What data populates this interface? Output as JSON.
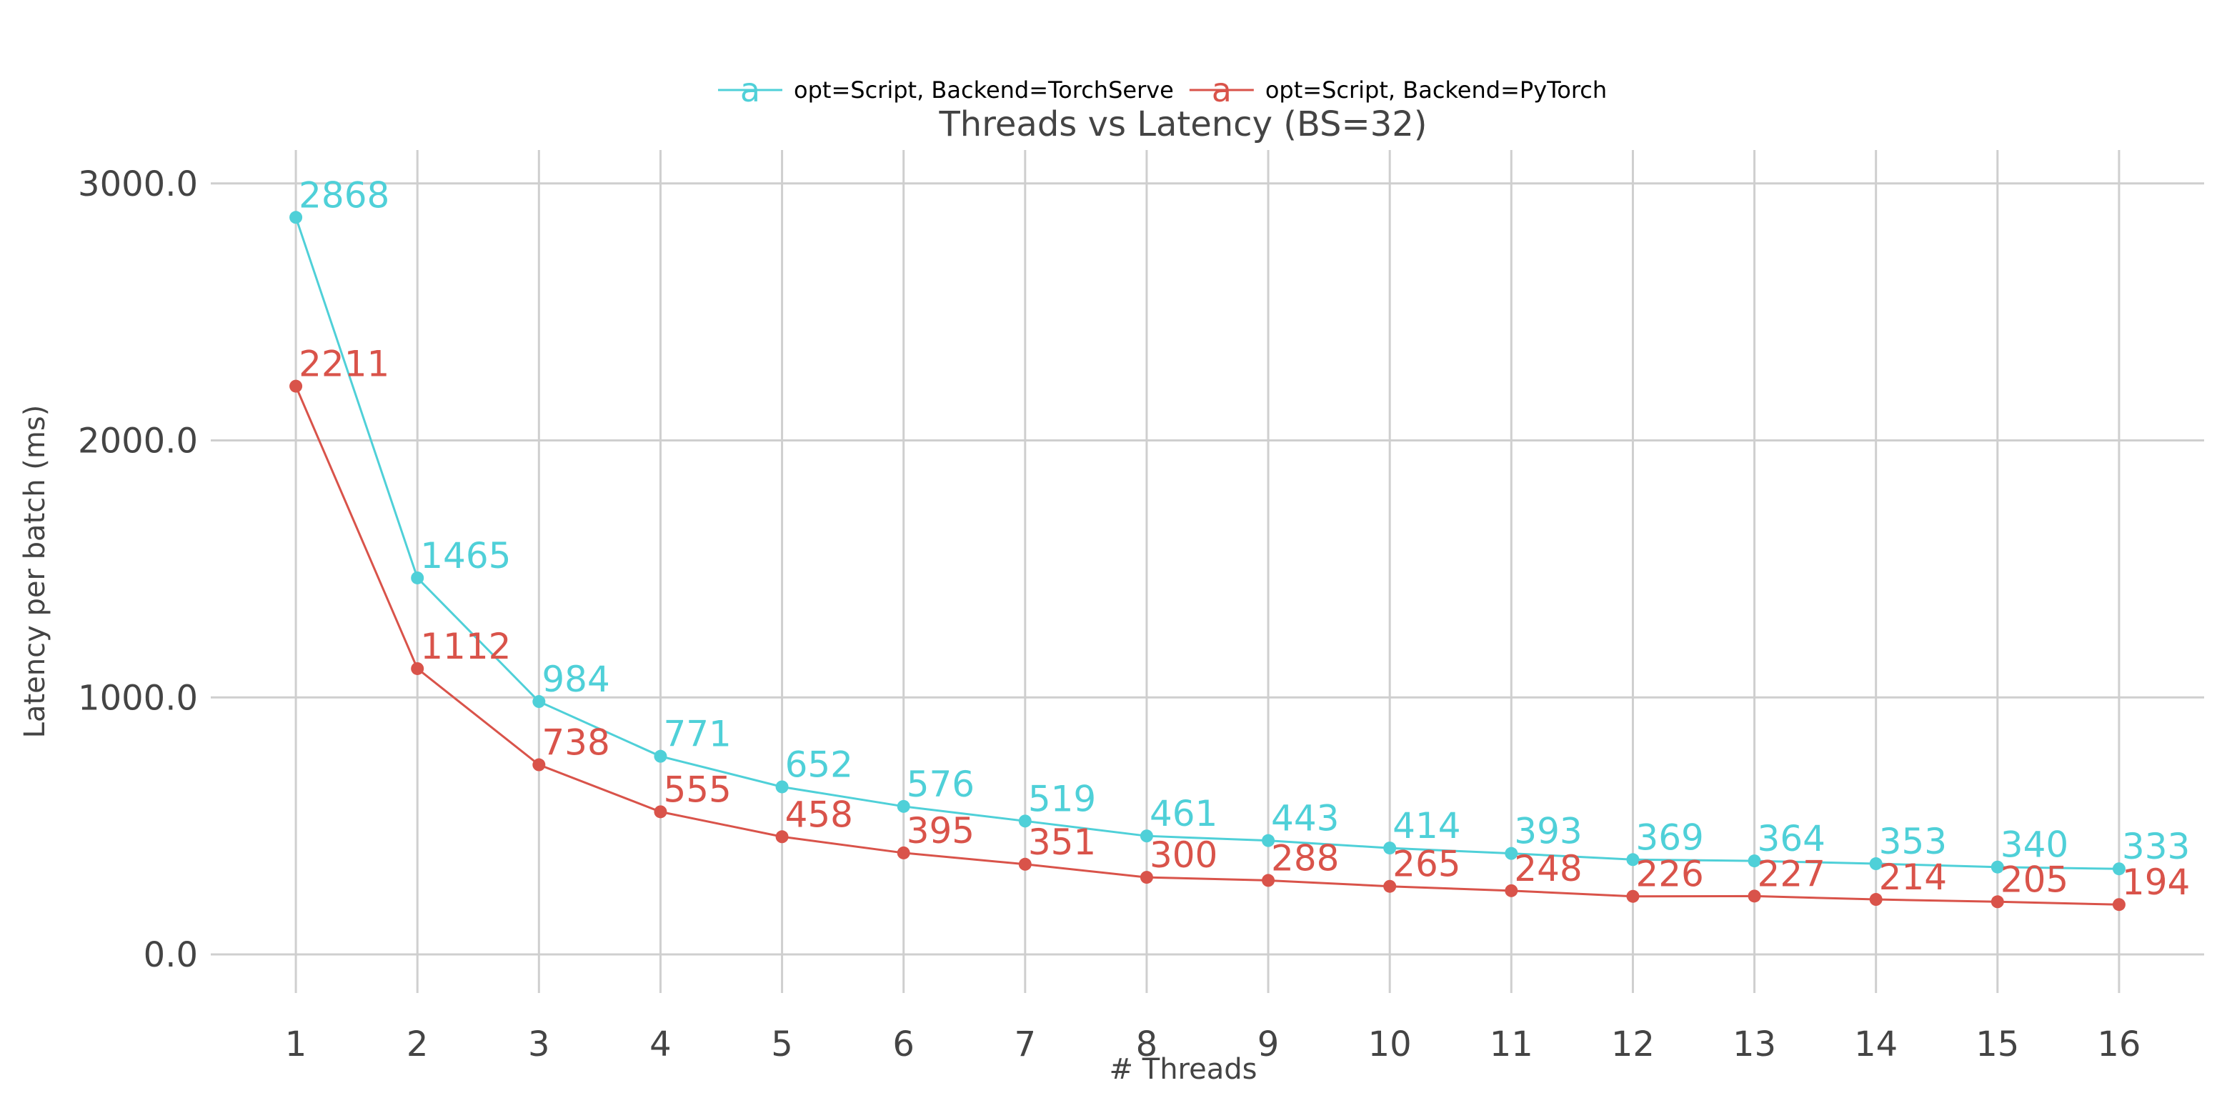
{
  "chart_data": {
    "type": "line",
    "title": "Threads vs Latency (BS=32)",
    "xlabel": "# Threads",
    "ylabel": "Latency per batch (ms)",
    "x": [
      1,
      2,
      3,
      4,
      5,
      6,
      7,
      8,
      9,
      10,
      11,
      12,
      13,
      14,
      15,
      16
    ],
    "xlim": [
      0.3,
      16.7
    ],
    "ylim": [
      -150,
      3130
    ],
    "yticks": [
      0,
      1000,
      2000,
      3000
    ],
    "ytick_labels": [
      "0.0",
      "1000.0",
      "2000.0",
      "3000.0"
    ],
    "grid": true,
    "legend_position": "top-center",
    "legend_marker_glyph": "a",
    "series": [
      {
        "name": "opt=Script, Backend=TorchServe",
        "color": "#4fd0d8",
        "values": [
          2868,
          1465,
          984,
          771,
          652,
          576,
          519,
          461,
          443,
          414,
          393,
          369,
          364,
          353,
          340,
          333
        ]
      },
      {
        "name": "opt=Script, Backend=PyTorch",
        "color": "#d9534a",
        "values": [
          2211,
          1112,
          738,
          555,
          458,
          395,
          351,
          300,
          288,
          265,
          248,
          226,
          227,
          214,
          205,
          194
        ]
      }
    ]
  }
}
